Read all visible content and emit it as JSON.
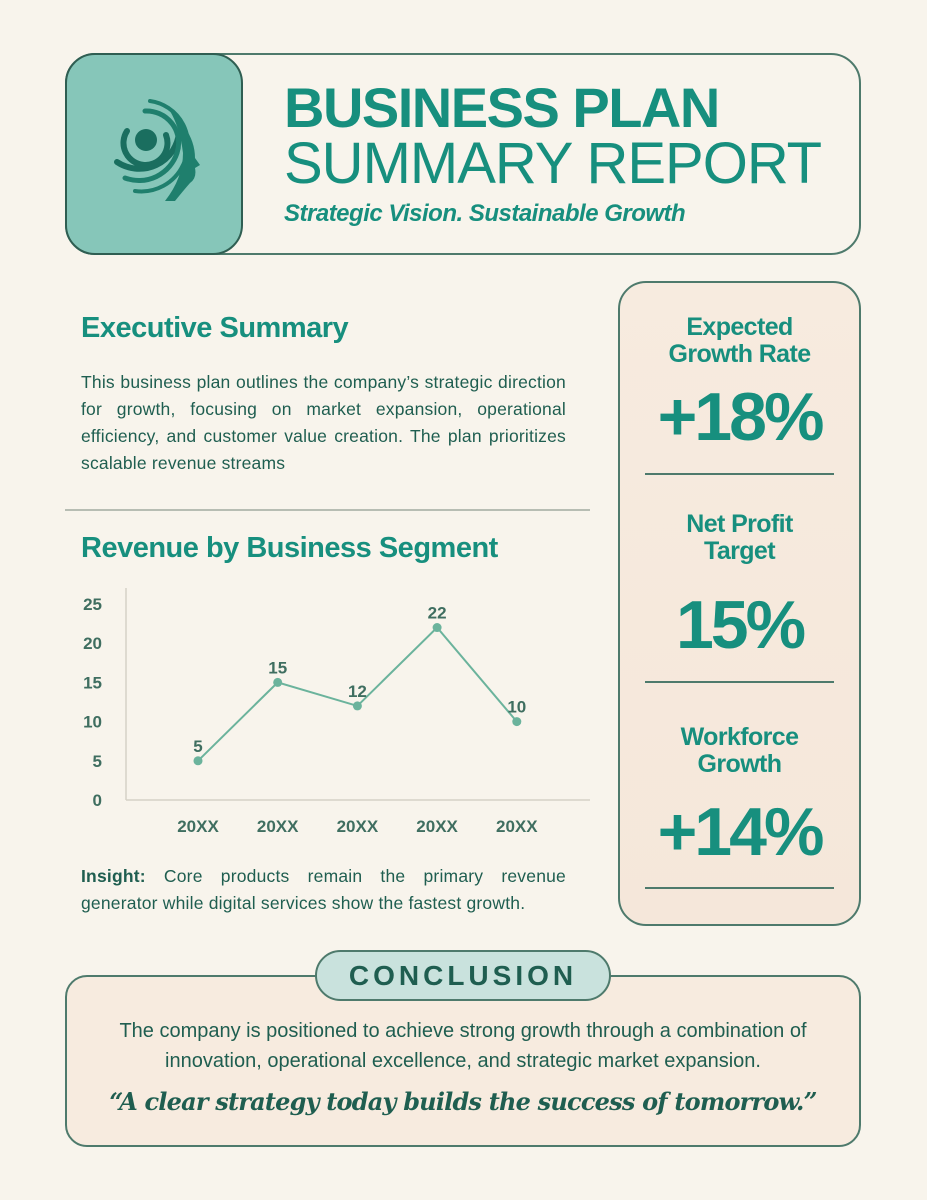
{
  "header": {
    "title_line1": "BUSINESS PLAN",
    "title_line2": "SUMMARY REPORT",
    "tagline": "Strategic Vision. Sustainable Growth"
  },
  "executive_summary": {
    "heading": "Executive Summary",
    "body": "This business plan outlines the company’s strategic direction for growth, focusing on market expansion, operational efficiency, and customer value creation. The plan prioritizes scalable revenue streams"
  },
  "chart_data": {
    "type": "line",
    "title": "Revenue by Business Segment",
    "categories": [
      "20XX",
      "20XX",
      "20XX",
      "20XX",
      "20XX"
    ],
    "values": [
      5,
      15,
      12,
      22,
      10
    ],
    "ylim": [
      0,
      25
    ],
    "yticks": [
      0,
      5,
      10,
      15,
      20,
      25
    ],
    "xlabel": "",
    "ylabel": "",
    "grid": false,
    "line_color": "#6bb39c"
  },
  "insight": {
    "label": "Insight:",
    "text": " Core products remain the primary revenue generator while digital services show the fastest growth."
  },
  "kpis": [
    {
      "label": "Expected Growth Rate",
      "value": "+18%"
    },
    {
      "label": "Net Profit Target",
      "value": "15%"
    },
    {
      "label": "Workforce Growth",
      "value": "+14%"
    }
  ],
  "conclusion": {
    "badge": "CONCLUSION",
    "text": "The company is positioned to achieve strong growth through a combination of innovation, operational excellence, and strategic market expansion.",
    "quote": "“A clear strategy today builds the success of tomorrow.”"
  },
  "colors": {
    "accent": "#178f7e",
    "text": "#1f5e50",
    "background": "#f8f4ec"
  }
}
